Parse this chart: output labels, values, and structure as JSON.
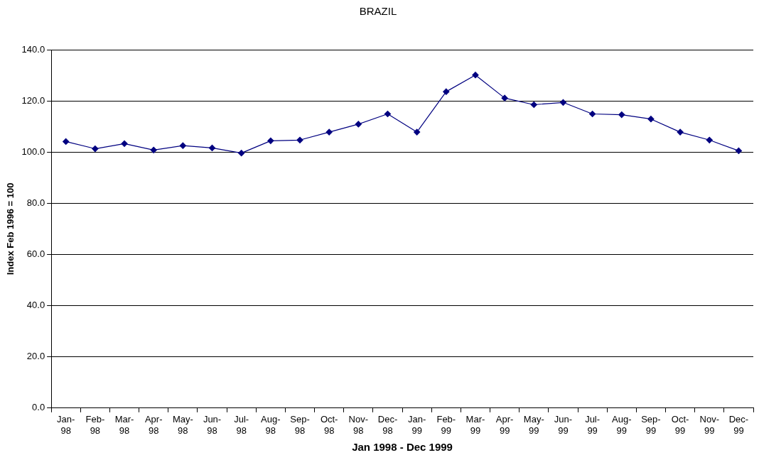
{
  "chart_data": {
    "type": "line",
    "title": "BRAZIL",
    "xlabel": "Jan 1998 - Dec 1999",
    "ylabel": "Index Feb 1996 = 100",
    "categories": [
      "Jan-98",
      "Feb-98",
      "Mar-98",
      "Apr-98",
      "May-98",
      "Jun-98",
      "Jul-98",
      "Aug-98",
      "Sep-98",
      "Oct-98",
      "Nov-98",
      "Dec-98",
      "Jan-99",
      "Feb-99",
      "Mar-99",
      "Apr-99",
      "May-99",
      "Jun-99",
      "Jul-99",
      "Aug-99",
      "Sep-99",
      "Oct-99",
      "Nov-99",
      "Dec-99"
    ],
    "series": [
      {
        "color": "#000080",
        "values": [
          104.1,
          101.3,
          103.3,
          100.8,
          102.5,
          101.6,
          99.6,
          104.4,
          104.7,
          107.8,
          110.9,
          114.9,
          107.8,
          123.6,
          130.1,
          121.1,
          118.5,
          119.4,
          114.9,
          114.6,
          112.9,
          107.8,
          104.7,
          100.5
        ]
      }
    ],
    "ylim": [
      0,
      140
    ],
    "yticks": [
      {
        "value": 0,
        "label": "0.0"
      },
      {
        "value": 20,
        "label": "20.0"
      },
      {
        "value": 40,
        "label": "40.0"
      },
      {
        "value": 60,
        "label": "60.0"
      },
      {
        "value": 80,
        "label": "80.0"
      },
      {
        "value": 100,
        "label": "100.0"
      },
      {
        "value": 120,
        "label": "120.0"
      },
      {
        "value": 140,
        "label": "140.0"
      }
    ],
    "grid": "y",
    "legend": false,
    "marker": "diamond",
    "line_style": "solid"
  }
}
